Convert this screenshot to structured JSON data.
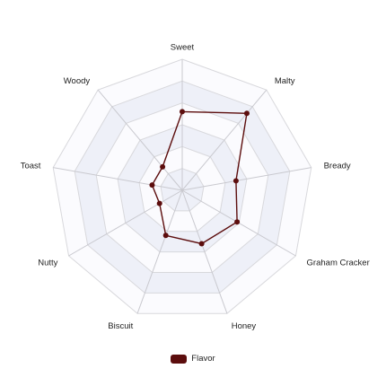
{
  "chart_data": {
    "type": "radar",
    "axes": [
      "Sweet",
      "Malty",
      "Bready",
      "Graham Cracker",
      "Honey",
      "Biscuit",
      "Nutty",
      "Toast",
      "Woody"
    ],
    "series": [
      {
        "name": "Flavor",
        "values": [
          3.6,
          4.6,
          2.5,
          2.9,
          2.6,
          2.2,
          1.2,
          1.4,
          1.4
        ],
        "color": "#5c0d0d"
      }
    ],
    "rmax": 6,
    "rings": 6,
    "grid": true,
    "legend_position": "bottom"
  },
  "legend": {
    "label": "Flavor",
    "color": "#5c0d0d"
  },
  "colors": {
    "band": "#eef0f8",
    "band_alt": "#fbfbfe",
    "grid_line": "#d8d8dc",
    "spoke": "#c9c9cf"
  }
}
